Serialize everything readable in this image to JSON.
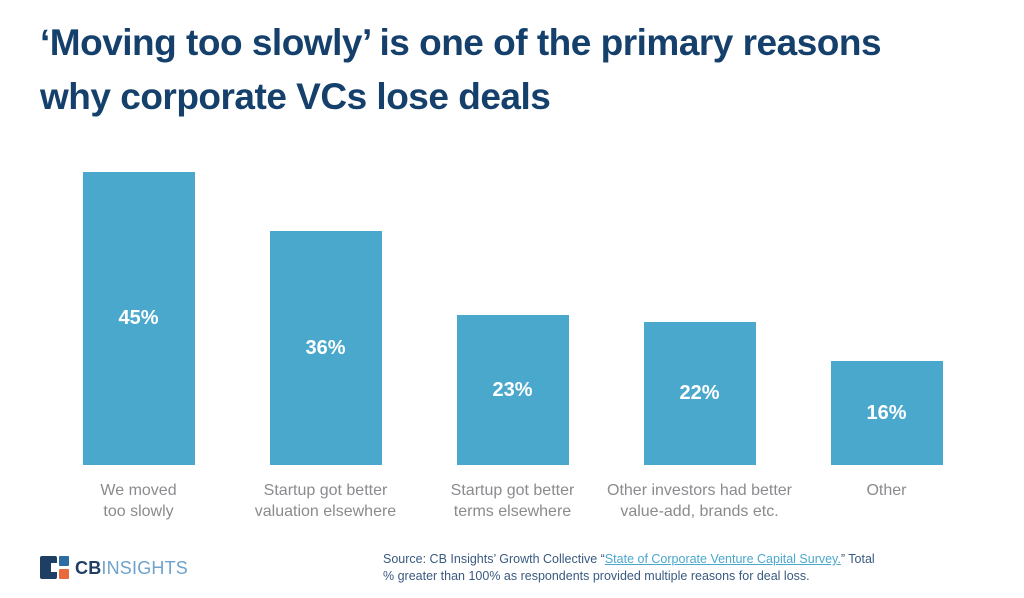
{
  "title": {
    "text": "‘Moving too slowly’ is one of the primary reasons\nwhy corporate VCs lose deals",
    "color": "#15406B"
  },
  "chart_data": {
    "type": "bar",
    "title": "‘Moving too slowly’ is one of the primary reasons why corporate VCs lose deals",
    "categories": [
      "We moved\ntoo slowly",
      "Startup got better\nvaluation elsewhere",
      "Startup got better\nterms elsewhere",
      "Other investors had better\nvalue-add, brands etc.",
      "Other"
    ],
    "values": [
      45,
      36,
      23,
      22,
      16
    ],
    "value_labels": [
      "45%",
      "36%",
      "23%",
      "22%",
      "16%"
    ],
    "unit": "%",
    "ylim": [
      0,
      50
    ],
    "xlabel": "",
    "ylabel": "",
    "grid": "off",
    "axes": "hidden",
    "legend": "none",
    "value_label_position": "inside-center",
    "bar_color": "#4BA8CD",
    "value_label_color": "#FFFFFF",
    "category_label_color": "#8A8B8E"
  },
  "footer": {
    "logo": {
      "cb_text": "CB",
      "insights_text": "INSIGHTS",
      "navy": "#1F3E63",
      "blue": "#2E6CA4",
      "orange": "#E8693C",
      "insights_color": "#6FA3CC"
    },
    "source": {
      "prefix": "Source: CB Insights’ Growth Collective “",
      "link_text": "State of Corporate Venture Capital Survey.",
      "suffix": "”  Total % greater than 100% as respondents provided multiple reasons for deal loss.",
      "text_color": "#3A5A80",
      "link_color": "#4BA8CD"
    }
  }
}
